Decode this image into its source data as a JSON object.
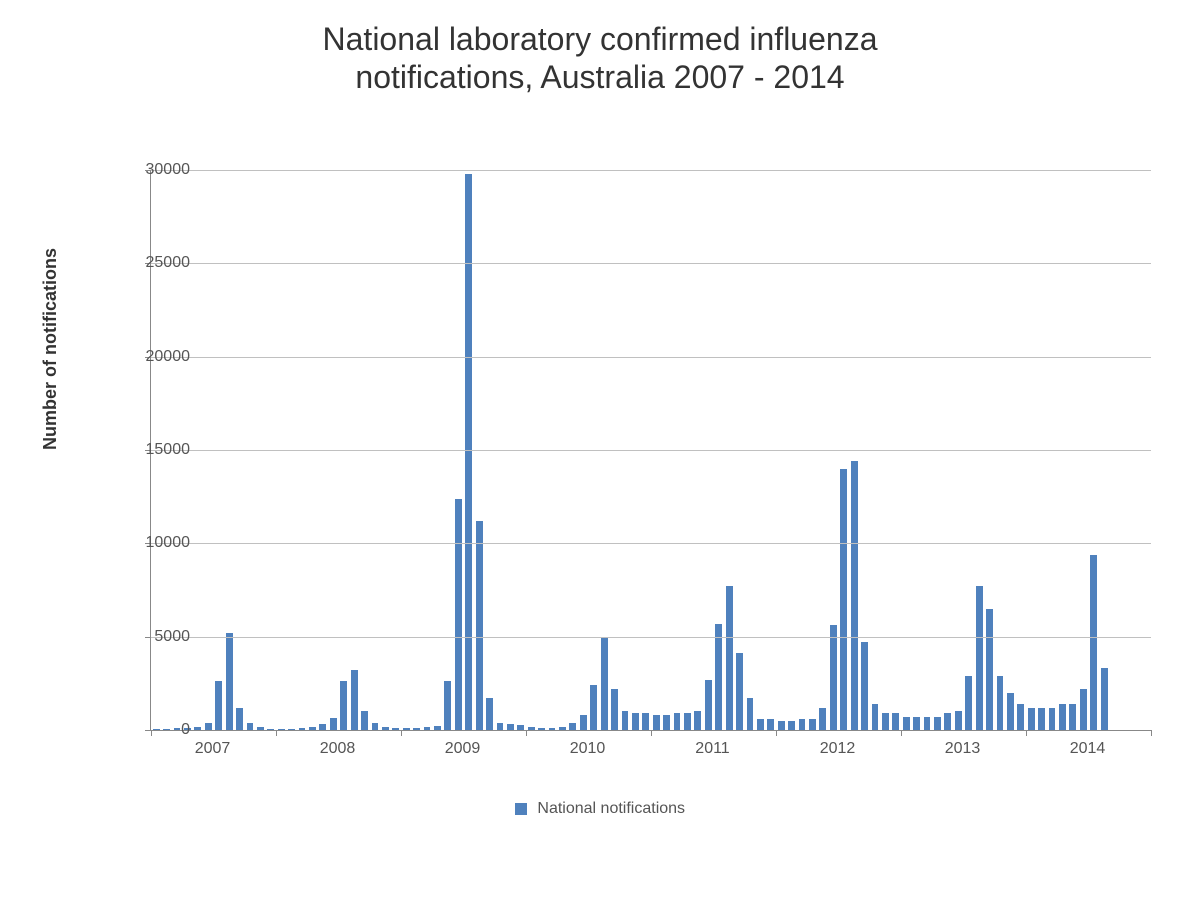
{
  "chart": {
    "type": "bar",
    "title_line1": "National laboratory confirmed influenza",
    "title_line2": "notifications, Australia 2007 - 2014",
    "title_fontsize": 32,
    "title_color": "#333333",
    "ylabel": "Number of notifications",
    "ylabel_fontsize": 18,
    "ylabel_color": "#333333",
    "ylim": [
      0,
      30000
    ],
    "ytick_step": 5000,
    "yticks": [
      0,
      5000,
      10000,
      15000,
      20000,
      25000,
      30000
    ],
    "x_category_labels": [
      "2007",
      "2008",
      "2009",
      "2010",
      "2011",
      "2012",
      "2013",
      "2014"
    ],
    "months_per_year": 12,
    "bar_color": "#4f81bd",
    "grid_color": "#c0c0c0",
    "axis_color": "#888888",
    "background_color": "#ffffff",
    "tick_label_fontsize": 16,
    "tick_label_color": "#555555",
    "bar_gap_ratio": 0.35,
    "legend_label": "National notifications",
    "legend_swatch_color": "#4f81bd",
    "legend_fontsize": 16,
    "values": [
      80,
      80,
      100,
      120,
      150,
      400,
      2600,
      5200,
      1200,
      400,
      150,
      80,
      80,
      80,
      100,
      150,
      300,
      650,
      2600,
      3200,
      1000,
      400,
      150,
      100,
      100,
      100,
      150,
      200,
      2600,
      12400,
      29800,
      11200,
      1700,
      400,
      300,
      250,
      150,
      120,
      120,
      150,
      400,
      800,
      2400,
      5000,
      2200,
      1000,
      900,
      900,
      800,
      800,
      900,
      900,
      1000,
      2700,
      5700,
      7700,
      4100,
      1700,
      600,
      600,
      500,
      500,
      600,
      600,
      1200,
      5600,
      14000,
      14400,
      4700,
      1400,
      900,
      900,
      700,
      700,
      700,
      700,
      900,
      1000,
      2900,
      7700,
      6500,
      2900,
      2000,
      1400,
      1200,
      1200,
      1200,
      1400,
      1400,
      2200,
      9400,
      3300
    ]
  }
}
